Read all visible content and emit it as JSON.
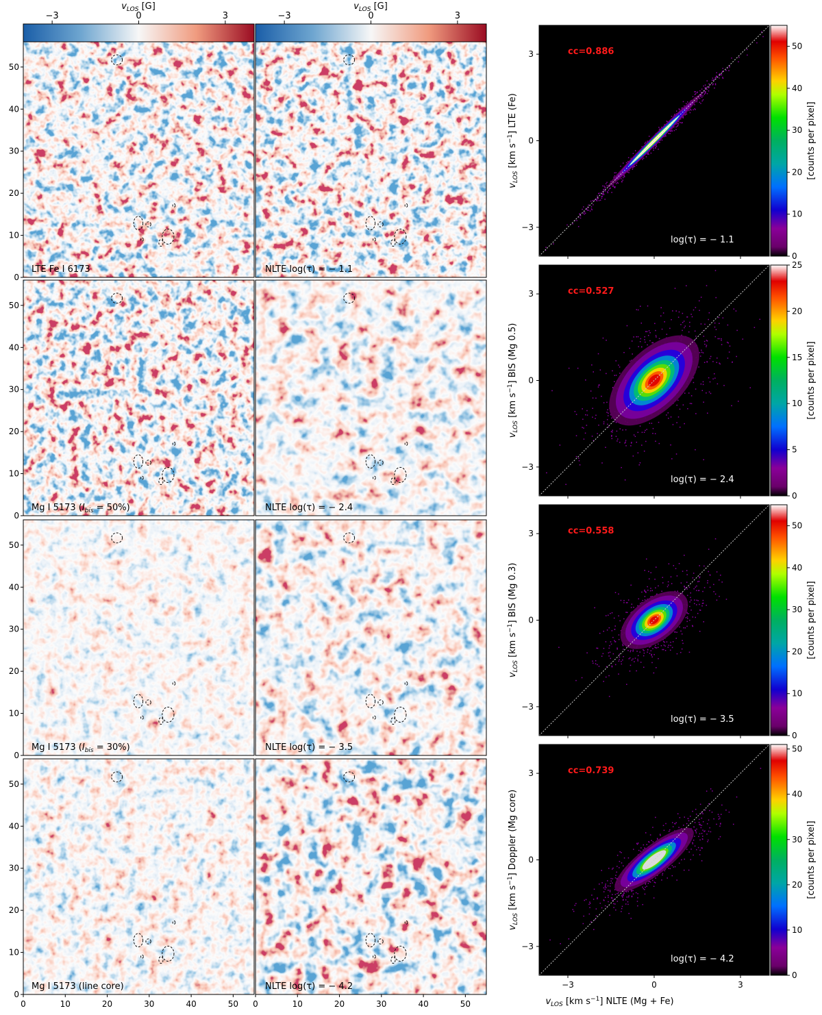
{
  "colors": {
    "div_low": "#1a5ea8",
    "div_mid": "#f7f7f7",
    "div_high": "#9a0c22",
    "cc_text": "#ff1a1a",
    "identity_line": "#cfcfcf",
    "plot_bg": "#000000"
  },
  "colorbar_top": {
    "label": "v_LOS [G]",
    "label_main": "v",
    "label_sub": "LOS",
    "label_unit": " [G]",
    "ticks": [
      "−3",
      "0",
      "3"
    ],
    "tick_values": [
      -3,
      0,
      3
    ],
    "range": [
      -4,
      4
    ]
  },
  "chart_data": [
    {
      "type": "heatmap",
      "description_of_axes": "map",
      "xticks": [
        "0",
        "10",
        "20",
        "30",
        "40",
        "50"
      ],
      "yticks": [
        "0",
        "10",
        "20",
        "30",
        "40",
        "50"
      ],
      "xlim": [
        0,
        55
      ],
      "ylim": [
        0,
        56
      ],
      "rows": [
        {
          "left_label": "LTE Fe I 6173",
          "right_label": "NLTE log(τ) = − 1.1",
          "left_contrast": 1.0,
          "right_contrast": 1.0
        },
        {
          "left_label": "Mg I 5173 (I",
          "left_label_sub": "bis",
          "left_label_tail": " = 50%)",
          "right_label": "NLTE log(τ) = − 2.4",
          "left_contrast": 1.0,
          "right_contrast": 0.75
        },
        {
          "left_label": "Mg I 5173 (I",
          "left_label_sub": "bis",
          "left_label_tail": " = 30%)",
          "right_label": "NLTE log(τ) = − 3.5",
          "left_contrast": 0.55,
          "right_contrast": 0.8
        },
        {
          "left_label": "Mg I 5173 (line core)",
          "right_label": "NLTE log(τ) = − 4.2",
          "left_contrast": 0.6,
          "right_contrast": 0.95
        }
      ]
    },
    {
      "type": "scatter",
      "subtype": "2d-histogram",
      "xlabel": "v_LOS [km s^-1] NLTE (Mg + Fe)",
      "xlabel_parts": [
        "v",
        "LOS",
        " [km s",
        "−1",
        "] NLTE (Mg + Fe)"
      ],
      "xlim": [
        -4,
        4
      ],
      "ylim": [
        -4,
        4
      ],
      "xticks": [
        "−3",
        "0",
        "3"
      ],
      "tick_values": [
        -3,
        0,
        3
      ],
      "colorbar_label": "[counts per pixel]",
      "panels": [
        {
          "cc": "cc=0.886",
          "tau": "log(τ) = − 1.1",
          "ylabel_parts": [
            "v",
            "LOS",
            " [km s",
            "−1",
            "] LTE (Fe)"
          ],
          "cbar_ticks": [
            "0",
            "10",
            "20",
            "30",
            "40",
            "50"
          ],
          "cbar_max": 55,
          "spread_along": 1.35,
          "spread_across": 0.07,
          "slope": 1.0,
          "saturated": false
        },
        {
          "cc": "cc=0.527",
          "tau": "log(τ) = − 2.4",
          "ylabel_parts": [
            "v",
            "LOS",
            " [km s",
            "−1",
            "] BIS (Mg 0.5)"
          ],
          "cbar_ticks": [
            "0",
            "5",
            "10",
            "15",
            "20",
            "25"
          ],
          "cbar_max": 25,
          "spread_along": 1.15,
          "spread_across": 0.6,
          "slope": 1.0,
          "saturated": false
        },
        {
          "cc": "cc=0.558",
          "tau": "log(τ) = − 3.5",
          "ylabel_parts": [
            "v",
            "LOS",
            " [km s",
            "−1",
            "] BIS (Mg 0.3)"
          ],
          "cbar_ticks": [
            "0",
            "10",
            "20",
            "30",
            "40",
            "50"
          ],
          "cbar_max": 55,
          "spread_along": 0.8,
          "spread_across": 0.42,
          "slope": 0.75,
          "saturated": false
        },
        {
          "cc": "cc=0.739",
          "tau": "log(τ) = − 4.2",
          "ylabel_parts": [
            "v",
            "LOS",
            " [km s",
            "−1",
            "] Doppler (Mg core)"
          ],
          "cbar_ticks": [
            "0",
            "10",
            "20",
            "30",
            "40",
            "50"
          ],
          "cbar_max": 51,
          "spread_along": 1.0,
          "spread_across": 0.28,
          "slope": 0.78,
          "saturated": true
        }
      ]
    }
  ]
}
